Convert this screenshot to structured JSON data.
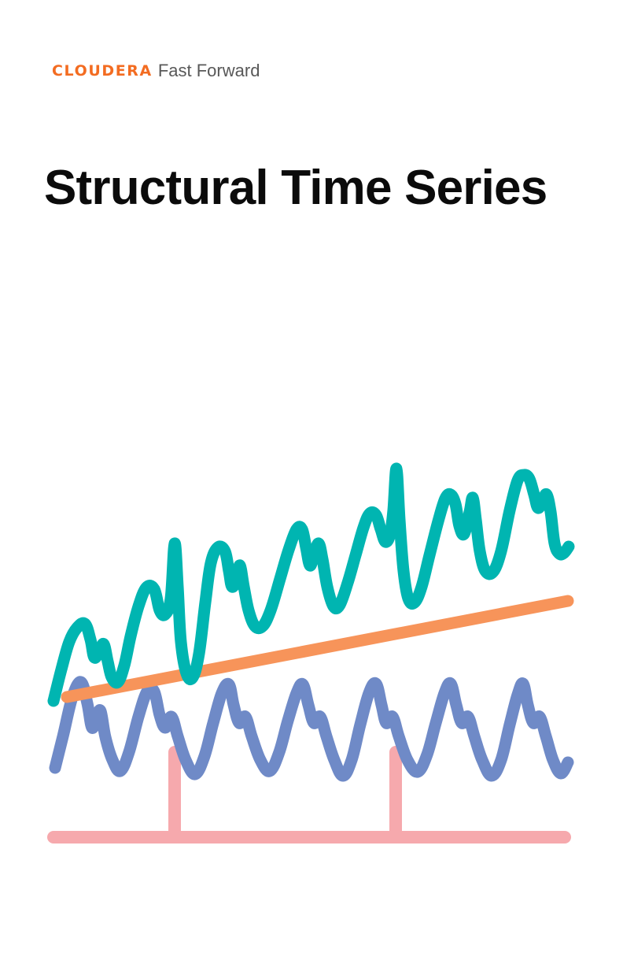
{
  "brand": {
    "name": "CLOUDERA",
    "subtitle": "Fast Forward"
  },
  "title": "Structural Time Series",
  "illustration": {
    "colors": {
      "observed": "#00b5b1",
      "trend": "#f7945a",
      "seasonal": "#6f8ac7",
      "holiday": "#f6a9ad"
    }
  }
}
